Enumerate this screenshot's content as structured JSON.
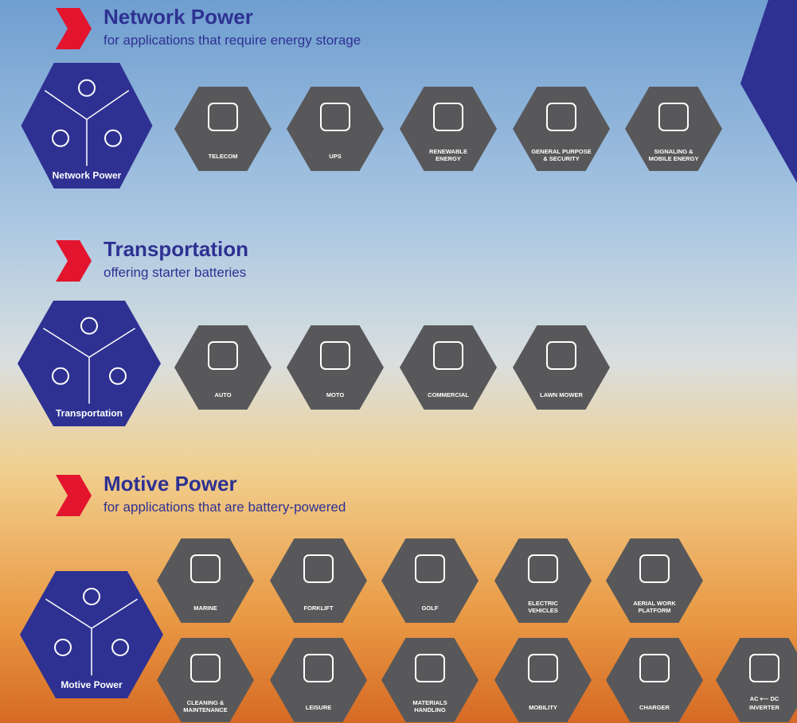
{
  "sections": [
    {
      "title": "Network Power",
      "subtitle": "for applications that require energy storage",
      "hub": "Network Power",
      "items": [
        {
          "label": [
            "TELECOM"
          ]
        },
        {
          "label": [
            "UPS"
          ]
        },
        {
          "label": [
            "RENEWABLE",
            "ENERGY"
          ]
        },
        {
          "label": [
            "GENERAL PURPOSE",
            "& SECURITY"
          ]
        },
        {
          "label": [
            "SIGNALING &",
            "MOBILE ENERGY"
          ]
        }
      ]
    },
    {
      "title": "Transportation",
      "subtitle": "offering starter batteries",
      "hub": "Transportation",
      "items": [
        {
          "label": [
            "AUTO"
          ]
        },
        {
          "label": [
            "MOTO"
          ]
        },
        {
          "label": [
            "COMMERCIAL"
          ]
        },
        {
          "label": [
            "LAWN MOWER"
          ]
        }
      ]
    },
    {
      "title": "Motive Power",
      "subtitle": "for applications that are battery-powered",
      "hub": "Motive Power",
      "items": [
        {
          "label": [
            "MARINE"
          ]
        },
        {
          "label": [
            "FORKLIFT"
          ]
        },
        {
          "label": [
            "GOLF"
          ]
        },
        {
          "label": [
            "ELECTRIC",
            "VEHICLES"
          ]
        },
        {
          "label": [
            "AERIAL WORK",
            "PLATFORM"
          ]
        },
        {
          "label": [
            "CLEANING &",
            "MAINTENANCE"
          ]
        },
        {
          "label": [
            "LEISURE"
          ]
        },
        {
          "label": [
            "MATERIALS",
            "HANDLING"
          ]
        },
        {
          "label": [
            "MOBILITY"
          ]
        },
        {
          "label": [
            "CHARGER"
          ]
        },
        {
          "label": [
            "INVERTER"
          ],
          "detail": "AC ⟵ DC"
        }
      ]
    }
  ]
}
